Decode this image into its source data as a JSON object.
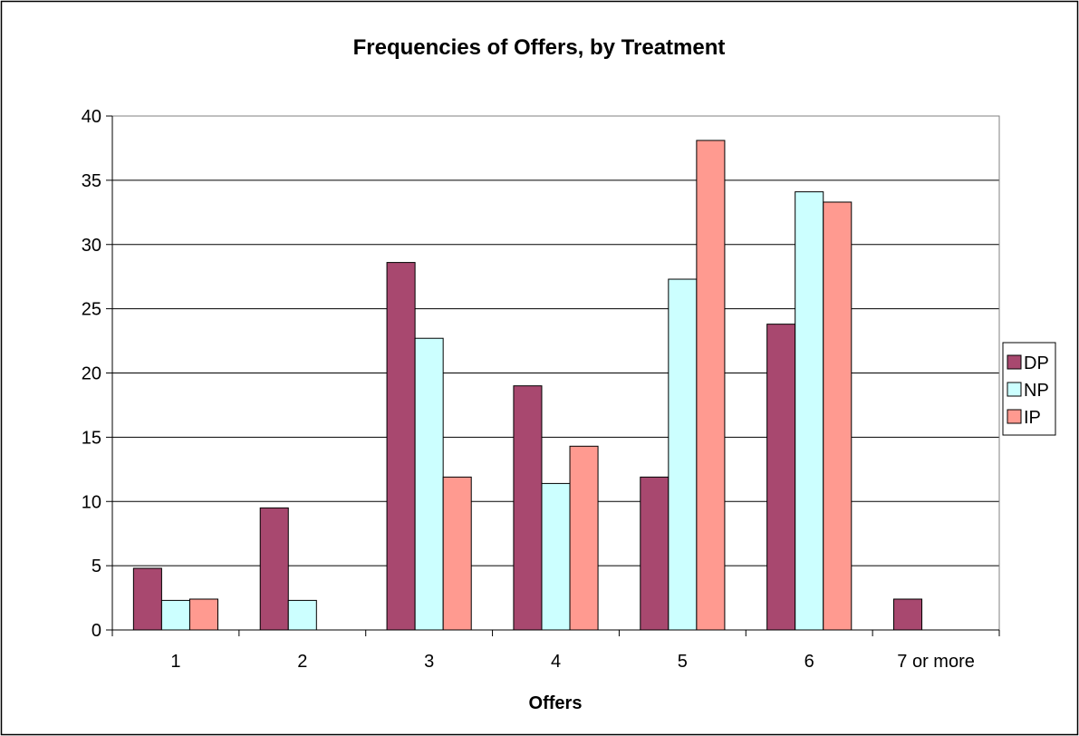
{
  "chart_data": {
    "type": "bar",
    "title": "Frequencies of Offers, by Treatment",
    "xlabel": "Offers",
    "ylabel": "",
    "categories": [
      "1",
      "2",
      "3",
      "4",
      "5",
      "6",
      "7 or more"
    ],
    "series": [
      {
        "name": "DP",
        "color": "#a8486f",
        "values": [
          4.8,
          9.5,
          28.6,
          19.0,
          11.9,
          23.8,
          2.4
        ]
      },
      {
        "name": "NP",
        "color": "#ccffff",
        "values": [
          2.3,
          2.3,
          22.7,
          11.4,
          27.3,
          34.1,
          0
        ]
      },
      {
        "name": "IP",
        "color": "#ff9a90",
        "values": [
          2.4,
          0,
          11.9,
          14.3,
          38.1,
          33.3,
          0
        ]
      }
    ],
    "ylim": [
      0,
      40
    ],
    "yticks": [
      0,
      5,
      10,
      15,
      20,
      25,
      30,
      35,
      40
    ],
    "grid": true,
    "legend_position": "right"
  }
}
